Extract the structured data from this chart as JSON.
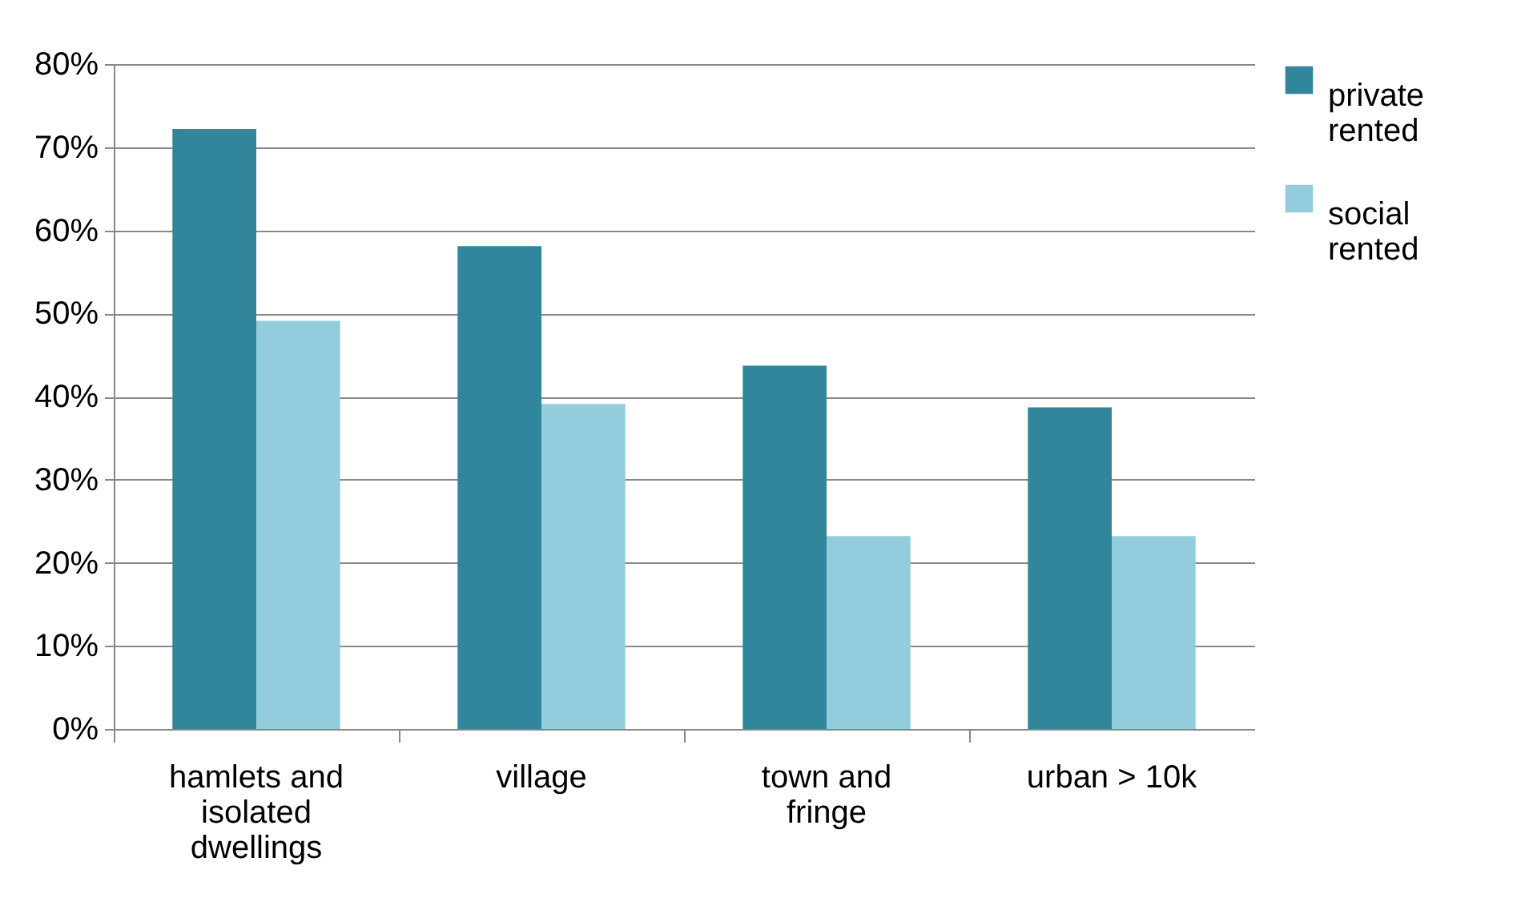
{
  "chart_data": {
    "type": "bar",
    "categories": [
      "hamlets and\nisolated\ndwellings",
      "village",
      "town and\nfringe",
      "urban > 10k"
    ],
    "series": [
      {
        "name": "private\nrented",
        "color": "#31869b",
        "values": [
          72.2,
          58.1,
          43.7,
          38.7
        ]
      },
      {
        "name": "social\nrented",
        "color": "#93cddd",
        "values": [
          49.1,
          39.1,
          23.2,
          23.2
        ]
      }
    ],
    "ylim": [
      0,
      80
    ],
    "yticks": [
      {
        "value": 0,
        "label": "0%"
      },
      {
        "value": 10,
        "label": "10%"
      },
      {
        "value": 20,
        "label": "20%"
      },
      {
        "value": 30,
        "label": "30%"
      },
      {
        "value": 40,
        "label": "40%"
      },
      {
        "value": 50,
        "label": "50%"
      },
      {
        "value": 60,
        "label": "60%"
      },
      {
        "value": 70,
        "label": "70%"
      },
      {
        "value": 80,
        "label": "80%"
      }
    ],
    "grid": "y",
    "legend": "right"
  }
}
